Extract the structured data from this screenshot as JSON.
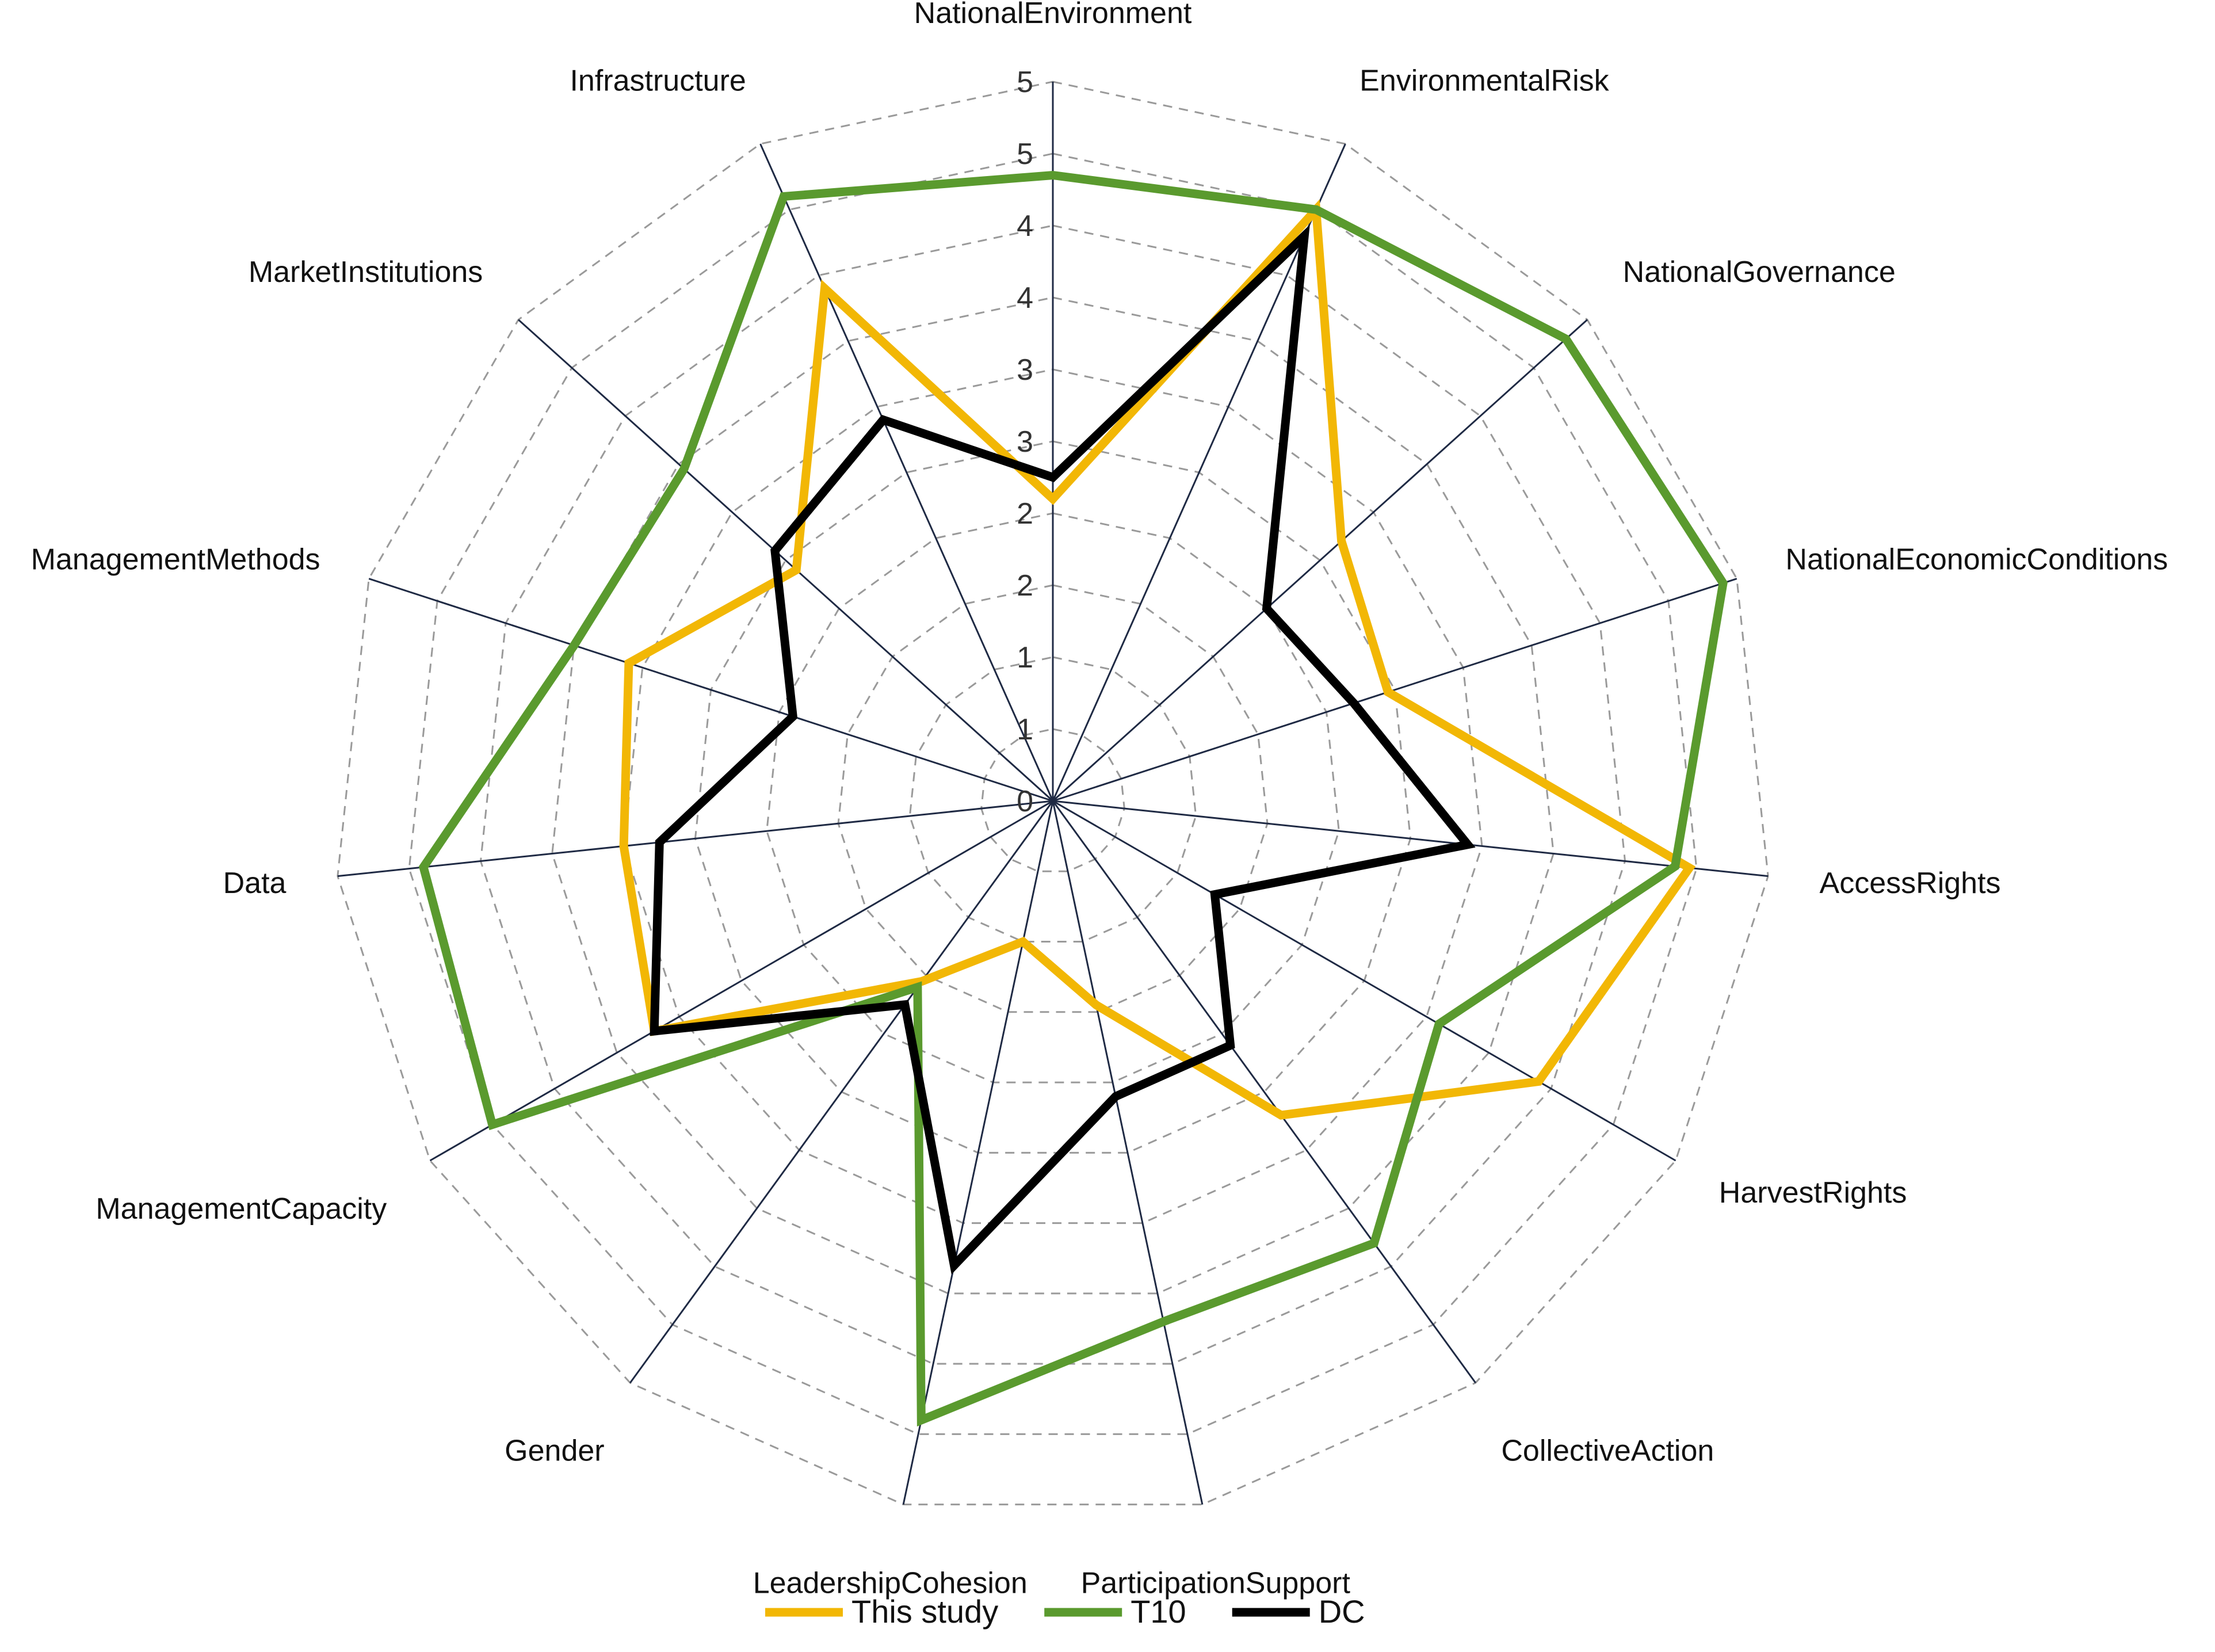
{
  "chart_data": {
    "type": "radar",
    "title": "",
    "axes": [
      "NationalEnvironment",
      "EnvironmentalRisk",
      "NationalGovernance",
      "NationalEconomicConditions",
      "AccessRights",
      "HarvestRights",
      "CollectiveAction",
      "ParticipationSupport",
      "LeadershipCohesion",
      "Gender",
      "ManagementCapacity",
      "Data",
      "ManagementMethods",
      "MarketInstitutions",
      "Infrastructure"
    ],
    "tick_labels": [
      "0",
      "1",
      "1",
      "2",
      "2",
      "3",
      "3",
      "4",
      "4",
      "5",
      "5"
    ],
    "range": [
      0,
      5
    ],
    "grid": true,
    "legend_position": "bottom",
    "series": [
      {
        "name": "This study",
        "color": "#F2B705",
        "values": [
          2.1,
          4.5,
          2.7,
          2.45,
          4.45,
          3.9,
          2.7,
          1.45,
          1.0,
          1.55,
          3.2,
          3.0,
          3.1,
          2.4,
          3.9
        ]
      },
      {
        "name": "T10",
        "color": "#5A9A2E",
        "values": [
          4.35,
          4.5,
          4.8,
          4.9,
          4.35,
          3.1,
          3.8,
          3.7,
          4.4,
          1.6,
          4.5,
          4.4,
          3.5,
          3.45,
          4.6
        ]
      },
      {
        "name": "DC",
        "color": "#000000",
        "values": [
          2.25,
          4.3,
          2.0,
          2.2,
          2.9,
          1.3,
          2.1,
          2.1,
          3.3,
          1.75,
          3.2,
          2.75,
          1.9,
          2.6,
          2.9
        ]
      }
    ]
  }
}
